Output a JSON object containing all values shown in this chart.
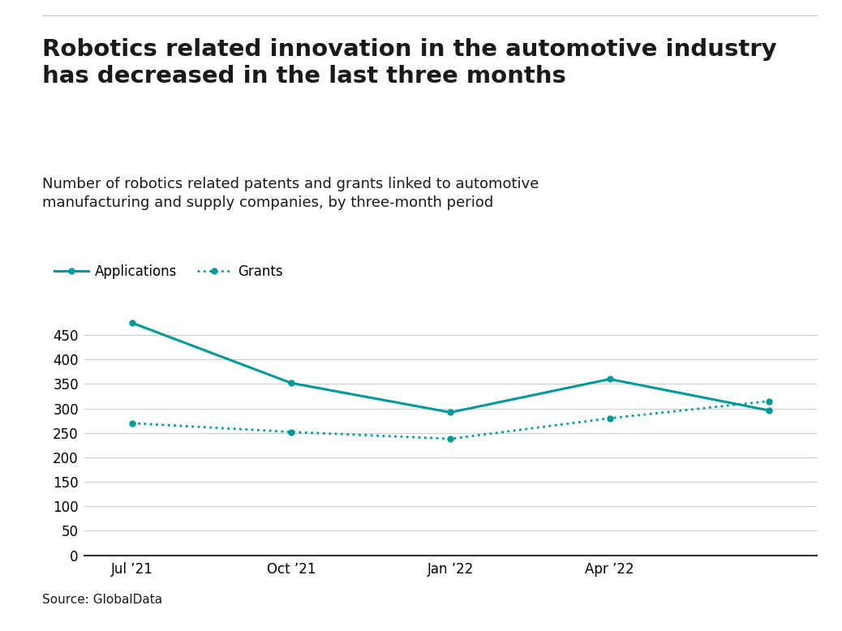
{
  "title_line1": "Robotics related innovation in the automotive industry",
  "title_line2": "has decreased in the last three months",
  "subtitle_line1": "Number of robotics related patents and grants linked to automotive",
  "subtitle_line2": "manufacturing and supply companies, by three-month period",
  "source": "Source: GlobalData",
  "x_labels": [
    "Jul ’21",
    "Oct ’21",
    "Jan ’22",
    "Apr ’22",
    ""
  ],
  "x_positions": [
    0,
    1,
    2,
    3,
    4
  ],
  "applications": [
    475,
    352,
    292,
    360,
    296
  ],
  "grants": [
    270,
    252,
    238,
    280,
    315
  ],
  "line_color": "#009999",
  "y_ticks": [
    0,
    50,
    100,
    150,
    200,
    250,
    300,
    350,
    400,
    450
  ],
  "ylim": [
    0,
    490
  ],
  "background_color": "#ffffff",
  "title_fontsize": 21,
  "subtitle_fontsize": 13,
  "tick_fontsize": 12,
  "legend_fontsize": 12,
  "source_fontsize": 11
}
